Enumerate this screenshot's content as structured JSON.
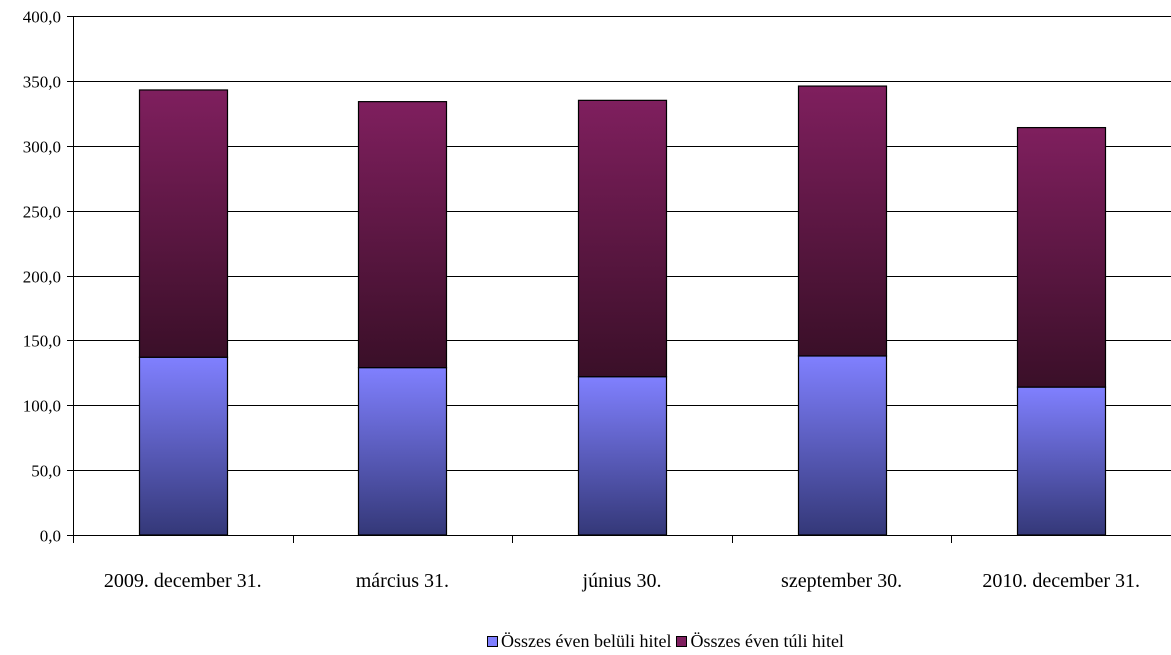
{
  "chart_data": {
    "type": "bar",
    "stacked": true,
    "categories": [
      "2009. december 31.",
      "március 31.",
      "június 30.",
      "szeptember 30.",
      "2010. december 31."
    ],
    "series": [
      {
        "name": "Összes éven belüli hitel",
        "values": [
          137,
          129,
          122,
          138,
          114
        ],
        "color": "#7f7fff"
      },
      {
        "name": "Összes éven túli hitel",
        "values": [
          206,
          205,
          213,
          208,
          200
        ],
        "color": "#7f1f5f"
      }
    ],
    "ylim": [
      0,
      400
    ],
    "yticks": [
      "0,0",
      "50,0",
      "100,0",
      "150,0",
      "200,0",
      "250,0",
      "300,0",
      "350,0",
      "400,0"
    ],
    "grid": true,
    "legend_position": "bottom-right"
  }
}
